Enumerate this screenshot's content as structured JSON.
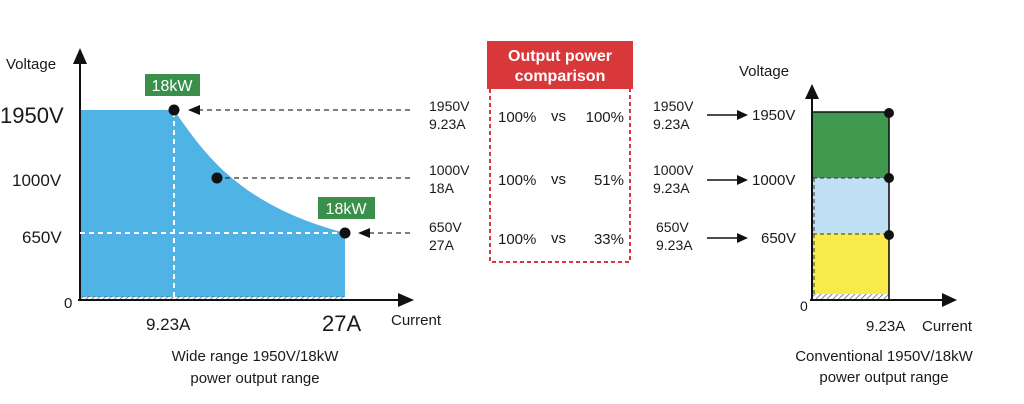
{
  "left_chart": {
    "y_axis_label": "Voltage",
    "x_axis_label": "Current",
    "origin_label": "0",
    "y_ticks": [
      {
        "label": "1950V",
        "color": "#d8383a"
      },
      {
        "label": "1000V",
        "color": "#1a1a1a"
      },
      {
        "label": "650V",
        "color": "#1a1a1a"
      }
    ],
    "x_ticks": [
      {
        "label": "9.23A",
        "color": "#1a1a1a"
      },
      {
        "label": "27A",
        "color": "#d8383a"
      }
    ],
    "badge_top": "18kW",
    "badge_right": "18kW",
    "caption_line1": "Wide range 1950V/18kW",
    "caption_line2": "power output range",
    "fill_color": "#4fb3e6",
    "badge_color": "#3a8f4a"
  },
  "operating_points": [
    {
      "voltage": "1950V",
      "current": "9.23A",
      "color": "#1a1a1a"
    },
    {
      "voltage": "1000V",
      "current": "18A",
      "color": "#d8383a"
    },
    {
      "voltage": "650V",
      "current": "27A",
      "color": "#d8383a"
    }
  ],
  "comparison": {
    "title_line1": "Output power",
    "title_line2": "comparison",
    "title_bg": "#d8383a",
    "rows": [
      {
        "left": "100%",
        "vs": "vs",
        "right": "100%"
      },
      {
        "left": "100%",
        "vs": "vs",
        "right": "51%"
      },
      {
        "left": "100%",
        "vs": "vs",
        "right": "33%"
      }
    ]
  },
  "conventional_points": [
    {
      "voltage": "1950V",
      "current": "9.23A",
      "target": "1950V"
    },
    {
      "voltage": "1000V",
      "current": "9.23A",
      "target": "1000V"
    },
    {
      "voltage": "650V",
      "current": "9.23A",
      "target": "650V"
    }
  ],
  "right_chart": {
    "y_axis_label": "Voltage",
    "x_axis_label": "Current",
    "origin_label": "0",
    "x_tick": "9.23A",
    "caption_line1": "Conventional 1950V/18kW",
    "caption_line2": "power output range",
    "band_colors": [
      "#3f9a4f",
      "#bfe0f2",
      "#f7ea4a"
    ]
  }
}
